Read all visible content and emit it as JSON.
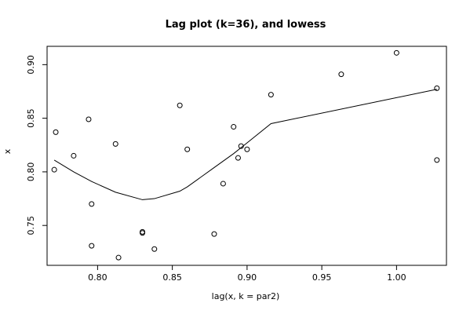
{
  "chart_data": {
    "type": "scatter",
    "title": "Lag plot (k=36), and lowess",
    "xlabel": "lag(x, k = par2)",
    "ylabel": "x",
    "xlim": [
      0.7662,
      1.0334
    ],
    "ylim": [
      0.7128,
      0.9171
    ],
    "x_ticks": [
      0.8,
      0.85,
      0.9,
      0.95,
      1.0
    ],
    "x_tick_labels": [
      "0.80",
      "0.85",
      "0.90",
      "0.95",
      "1.00"
    ],
    "y_ticks": [
      0.75,
      0.8,
      0.85,
      0.9
    ],
    "y_tick_labels": [
      "0.75",
      "0.80",
      "0.85",
      "0.90"
    ],
    "grid": false,
    "legend": "none",
    "points": [
      {
        "x": 0.771,
        "y": 0.802
      },
      {
        "x": 0.772,
        "y": 0.837
      },
      {
        "x": 0.784,
        "y": 0.815
      },
      {
        "x": 0.794,
        "y": 0.849
      },
      {
        "x": 0.796,
        "y": 0.77
      },
      {
        "x": 0.796,
        "y": 0.731
      },
      {
        "x": 0.812,
        "y": 0.826
      },
      {
        "x": 0.814,
        "y": 0.72
      },
      {
        "x": 0.83,
        "y": 0.744
      },
      {
        "x": 0.83,
        "y": 0.743
      },
      {
        "x": 0.838,
        "y": 0.728
      },
      {
        "x": 0.855,
        "y": 0.862
      },
      {
        "x": 0.86,
        "y": 0.821
      },
      {
        "x": 0.878,
        "y": 0.742
      },
      {
        "x": 0.884,
        "y": 0.789
      },
      {
        "x": 0.891,
        "y": 0.842
      },
      {
        "x": 0.894,
        "y": 0.813
      },
      {
        "x": 0.896,
        "y": 0.824
      },
      {
        "x": 0.9,
        "y": 0.821
      },
      {
        "x": 0.916,
        "y": 0.872
      },
      {
        "x": 0.963,
        "y": 0.891
      },
      {
        "x": 1.0,
        "y": 0.911
      },
      {
        "x": 1.027,
        "y": 0.811
      },
      {
        "x": 1.027,
        "y": 0.878
      }
    ],
    "lowess": [
      {
        "x": 0.771,
        "y": 0.811
      },
      {
        "x": 0.784,
        "y": 0.8
      },
      {
        "x": 0.796,
        "y": 0.791
      },
      {
        "x": 0.812,
        "y": 0.781
      },
      {
        "x": 0.83,
        "y": 0.774
      },
      {
        "x": 0.838,
        "y": 0.775
      },
      {
        "x": 0.855,
        "y": 0.782
      },
      {
        "x": 0.86,
        "y": 0.786
      },
      {
        "x": 0.878,
        "y": 0.804
      },
      {
        "x": 0.891,
        "y": 0.817
      },
      {
        "x": 0.9,
        "y": 0.827
      },
      {
        "x": 0.916,
        "y": 0.845
      },
      {
        "x": 1.027,
        "y": 0.877
      }
    ]
  }
}
